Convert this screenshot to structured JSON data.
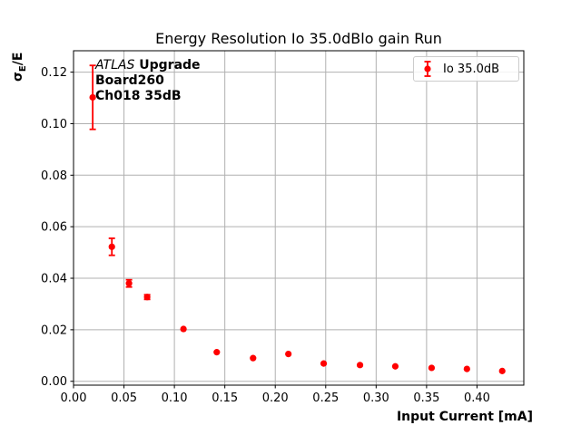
{
  "title": "Energy Resolution Io 35.0dBlo gain Run",
  "annotation": {
    "atlas": "ATLAS",
    "upgrade": " Upgrade",
    "line2": "Board260",
    "line3": "Ch018 35dB"
  },
  "legend": {
    "label": "Io 35.0dB"
  },
  "axis_labels": {
    "y_sigma": "σ",
    "y_sub": "E",
    "y_rest": "/E",
    "x": "Input Current [mA]"
  },
  "colors": {
    "series": "#ff0000",
    "grid": "#b0b0b0",
    "spine": "#000000",
    "text": "#000000",
    "legend_border": "#cccccc"
  },
  "chart_data": {
    "type": "scatter",
    "title": "Energy Resolution Io 35.0dBlo gain Run",
    "xlabel": "Input Current [mA]",
    "ylabel": "σ_E/E",
    "grid": true,
    "legend_position": "upper right",
    "series": [
      {
        "name": "Io 35.0dB",
        "color": "#ff0000",
        "marker": "circle-with-error-bars",
        "x": [
          0.019,
          0.038,
          0.055,
          0.073,
          0.109,
          0.142,
          0.178,
          0.213,
          0.248,
          0.284,
          0.319,
          0.355,
          0.39,
          0.425
        ],
        "y": [
          0.1102,
          0.0522,
          0.038,
          0.0327,
          0.0203,
          0.0113,
          0.009,
          0.0106,
          0.0069,
          0.0063,
          0.0058,
          0.0052,
          0.0048,
          0.004
        ],
        "yerr": [
          0.0124,
          0.0033,
          0.0014,
          0.0009,
          0.0005,
          0.0004,
          0.0004,
          0.0004,
          0.0003,
          0.0003,
          0.0003,
          0.0003,
          0.0003,
          0.0003
        ]
      }
    ],
    "xlim": [
      0.0,
      0.4464
    ],
    "ylim": [
      -0.0015,
      0.1283
    ],
    "xticks": [
      0.0,
      0.05,
      0.1,
      0.15,
      0.2,
      0.25,
      0.3,
      0.35,
      0.4
    ],
    "yticks": [
      0.0,
      0.02,
      0.04,
      0.06,
      0.08,
      0.1,
      0.12
    ]
  }
}
